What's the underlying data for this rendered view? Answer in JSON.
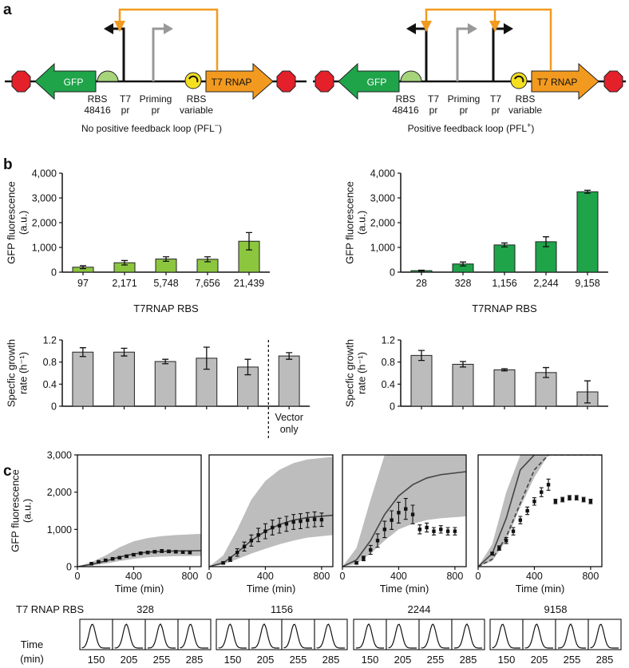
{
  "panel_labels": {
    "a": "a",
    "b": "b",
    "c": "c"
  },
  "panel_a": {
    "left": {
      "caption_main": "No positive feedback loop (PFL",
      "caption_sup": "−",
      "caption_end": ")",
      "gfp": "GFP",
      "t7rnap": "T7 RNAP",
      "rbs48416": [
        "RBS",
        "48416"
      ],
      "t7pr": [
        "T7",
        "pr"
      ],
      "priming": [
        "Priming",
        "pr"
      ],
      "rbsvar": [
        "RBS",
        "variable"
      ]
    },
    "right": {
      "caption_main": "Positive feedback loop (PFL",
      "caption_sup": "+",
      "caption_end": ")",
      "gfp": "GFP",
      "t7rnap": "T7 RNAP",
      "rbs48416": [
        "RBS",
        "48416"
      ],
      "t7pr1": [
        "T7",
        "pr"
      ],
      "priming": [
        "Priming",
        "pr"
      ],
      "t7pr2": [
        "T7",
        "pr"
      ],
      "rbsvar": [
        "RBS",
        "variable"
      ]
    },
    "colors": {
      "gfp": "#1fa44a",
      "t7": "#f29a1f",
      "stop": "#e4202a",
      "rbs": "#a6d47a",
      "feedback": "#f29a1f"
    }
  },
  "chart_data": [
    {
      "id": "b-left-gfp",
      "type": "bar",
      "categories": [
        "97",
        "2,171",
        "5,748",
        "7,656",
        "21,439"
      ],
      "values": [
        200,
        380,
        530,
        520,
        1250
      ],
      "errors": [
        60,
        90,
        90,
        100,
        350
      ],
      "ylabel": [
        "GFP fluorescence",
        "(a.u.)"
      ],
      "xlabel": "T7RNAP RBS",
      "ylim": [
        0,
        4000
      ],
      "yticks": [
        "0",
        "1,000",
        "2,000",
        "3,000",
        "4,000"
      ],
      "color": "#8cc63f"
    },
    {
      "id": "b-right-gfp",
      "type": "bar",
      "categories": [
        "28",
        "328",
        "1,156",
        "2,244",
        "9,158"
      ],
      "values": [
        60,
        330,
        1100,
        1230,
        3250
      ],
      "errors": [
        20,
        80,
        80,
        200,
        60
      ],
      "ylabel": [
        "GFP fluorescence",
        "(a.u.)"
      ],
      "xlabel": "T7RNAP RBS",
      "ylim": [
        0,
        4000
      ],
      "yticks": [
        "0",
        "1,000",
        "2,000",
        "3,000",
        "4,000"
      ],
      "color": "#1fa44a"
    },
    {
      "id": "b-left-growth",
      "type": "bar",
      "categories": [
        "",
        "",
        "",
        "",
        "",
        "Vector only"
      ],
      "values": [
        0.98,
        0.98,
        0.81,
        0.87,
        0.71,
        0.91
      ],
      "errors": [
        0.08,
        0.07,
        0.04,
        0.2,
        0.14,
        0.06
      ],
      "ylabel": [
        "Specfic growth",
        "rate (h⁻¹)"
      ],
      "ylim": [
        0,
        1.2
      ],
      "yticks": [
        "0",
        "0.4",
        "0.8",
        "1.2"
      ],
      "separator_after": 5,
      "color": "#bcbcbc"
    },
    {
      "id": "b-right-growth",
      "type": "bar",
      "categories": [
        "",
        "",
        "",
        "",
        ""
      ],
      "values": [
        0.92,
        0.76,
        0.66,
        0.61,
        0.26
      ],
      "errors": [
        0.09,
        0.05,
        0.02,
        0.09,
        0.2
      ],
      "ylabel": [
        "Specfic growth",
        "rate (h⁻¹)"
      ],
      "ylim": [
        0,
        1.2
      ],
      "yticks": [
        "0",
        "0.4",
        "0.8",
        "1.2"
      ],
      "color": "#bcbcbc"
    },
    {
      "id": "c-timecourse",
      "type": "line",
      "xlabel": "Time (min)",
      "ylabel": [
        "GFP fluorescence",
        "(a.u.)"
      ],
      "xlim": [
        0,
        880
      ],
      "ylim": [
        0,
        3000
      ],
      "xticks": [
        "0",
        "400",
        "800"
      ],
      "yticks": [
        "0",
        "1,000",
        "2,000",
        "3,000"
      ],
      "series": [
        {
          "name": "328",
          "model": {
            "t": [
              0,
              100,
              200,
              300,
              400,
              500,
              600,
              700,
              880
            ],
            "y": [
              0,
              60,
              150,
              260,
              340,
              390,
              410,
              420,
              430
            ]
          },
          "band_lo": [
            0,
            30,
            80,
            150,
            210,
            250,
            270,
            280,
            290
          ],
          "band_hi": [
            0,
            120,
            300,
            520,
            680,
            770,
            820,
            850,
            880
          ],
          "points": {
            "t": [
              100,
              150,
              200,
              250,
              300,
              350,
              400,
              450,
              500,
              550,
              600,
              650,
              700,
              750,
              800
            ],
            "y": [
              80,
              130,
              170,
              210,
              240,
              280,
              320,
              360,
              380,
              400,
              420,
              410,
              400,
              390,
              380
            ],
            "err": [
              20,
              20,
              30,
              30,
              30,
              30,
              30,
              30,
              30,
              30,
              40,
              30,
              30,
              30,
              30
            ]
          }
        },
        {
          "name": "1156",
          "model": {
            "t": [
              0,
              100,
              200,
              300,
              400,
              500,
              600,
              700,
              880
            ],
            "y": [
              0,
              100,
              380,
              700,
              950,
              1130,
              1250,
              1320,
              1380
            ]
          },
          "band_lo": [
            0,
            60,
            200,
            350,
            480,
            600,
            700,
            780,
            850
          ],
          "band_hi": [
            0,
            300,
            1000,
            1800,
            2300,
            2600,
            2780,
            2880,
            2950
          ],
          "points": {
            "t": [
              100,
              150,
              200,
              250,
              300,
              350,
              400,
              450,
              500,
              550,
              600,
              650,
              700,
              750,
              800
            ],
            "y": [
              100,
              200,
              380,
              540,
              700,
              850,
              950,
              1050,
              1100,
              1150,
              1200,
              1220,
              1250,
              1270,
              1260
            ],
            "err": [
              30,
              60,
              100,
              120,
              150,
              180,
              200,
              200,
              200,
              200,
              200,
              200,
              200,
              200,
              180
            ]
          }
        },
        {
          "name": "2244",
          "model": {
            "t": [
              0,
              100,
              200,
              300,
              400,
              500,
              600,
              700,
              880
            ],
            "y": [
              0,
              180,
              700,
              1400,
              1900,
              2200,
              2380,
              2470,
              2550
            ]
          },
          "band_lo": [
            0,
            80,
            350,
            700,
            1000,
            1150,
            1250,
            1300,
            1350
          ],
          "band_hi": [
            0,
            500,
            1800,
            3000,
            3000,
            3000,
            3000,
            3000,
            3000
          ],
          "points": {
            "t": [
              100,
              150,
              200,
              250,
              300,
              350,
              400,
              450,
              500,
              550,
              600,
              650,
              700,
              750,
              800
            ],
            "y": [
              100,
              220,
              450,
              700,
              1000,
              1250,
              1450,
              1550,
              1400,
              1000,
              1050,
              950,
              1000,
              950,
              950
            ],
            "err": [
              30,
              60,
              120,
              180,
              220,
              250,
              280,
              280,
              250,
              120,
              120,
              100,
              100,
              100,
              100
            ]
          }
        },
        {
          "name": "9158",
          "model": {
            "t": [
              0,
              100,
              200,
              300,
              400,
              500,
              880
            ],
            "y": [
              0,
              350,
              1300,
              2600,
              3000,
              3000,
              3000
            ]
          },
          "model2": {
            "t": [
              0,
              100,
              200,
              300,
              400,
              500,
              880
            ],
            "y": [
              0,
              200,
              800,
              1700,
              2600,
              3000,
              3000
            ]
          },
          "band_lo": [
            0,
            150,
            700,
            1600,
            2400,
            3000,
            3000
          ],
          "band_hi": [
            0,
            600,
            2000,
            3000,
            3000,
            3000,
            3000
          ],
          "points": {
            "t": [
              100,
              150,
              200,
              250,
              300,
              350,
              400,
              450,
              500,
              550,
              600,
              650,
              700,
              750,
              800
            ],
            "y": [
              350,
              500,
              700,
              950,
              1250,
              1500,
              1750,
              2000,
              2200,
              1750,
              1800,
              1850,
              1850,
              1800,
              1750
            ],
            "err": [
              40,
              60,
              80,
              100,
              100,
              100,
              100,
              120,
              150,
              60,
              60,
              60,
              60,
              60,
              60
            ]
          }
        }
      ]
    }
  ],
  "distributions": {
    "label": "T7 RNAP RBS",
    "time_label": [
      "Time",
      "(min)"
    ],
    "time_values": [
      "150",
      "205",
      "255",
      "285"
    ],
    "groups": [
      "328",
      "1156",
      "2244",
      "9158"
    ]
  }
}
